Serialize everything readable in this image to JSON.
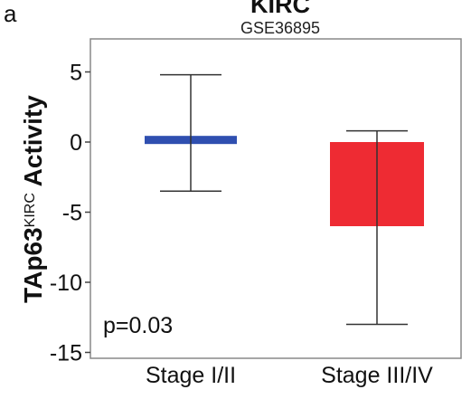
{
  "panel_label": "a",
  "chart_data": {
    "type": "bar",
    "title": "KIRC",
    "subtitle": "GSE36895",
    "ylabel_base": "TAp63",
    "ylabel_sup": "KIRC",
    "ylabel_rest": " Activity",
    "xlabel": "",
    "ylim": [
      -15,
      7.5
    ],
    "yticks": [
      5,
      0,
      -5,
      -10,
      -15
    ],
    "grid": false,
    "categories": [
      "Stage I/II",
      "Stage III/IV"
    ],
    "values": [
      0.3,
      -6.0
    ],
    "error_low": [
      -3.5,
      -13.0
    ],
    "error_high": [
      4.8,
      0.8
    ],
    "colors": [
      "#2f4fb0",
      "#ee2b33"
    ],
    "annotation": "p=0.03"
  }
}
